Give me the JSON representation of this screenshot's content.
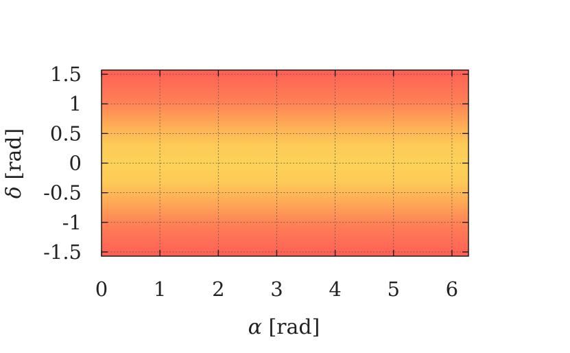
{
  "chart_data": {
    "type": "heatmap",
    "title": "",
    "x_ticks": [
      "0",
      "1",
      "2",
      "3",
      "4",
      "5",
      "6"
    ],
    "y_ticks": [
      "1.5",
      "1",
      "0.5",
      "0",
      "-0.5",
      "-1",
      "-1.5"
    ],
    "xlim": [
      0,
      6.283
    ],
    "ylim": [
      -1.5708,
      1.5708
    ],
    "xlabel": {
      "symbol": "α",
      "unit": " [rad]"
    },
    "ylabel": {
      "symbol": "δ",
      "unit": " [rad]"
    },
    "grid": true,
    "colormap": {
      "center_color": "#fdd257",
      "edge_color": "#ff5f55"
    },
    "gradient_profile": [
      {
        "delta": -1.5708,
        "t": 1.0
      },
      {
        "delta": -1.05,
        "t": 0.72
      },
      {
        "delta": -0.6,
        "t": 0.3
      },
      {
        "delta": -0.3,
        "t": 0.06
      },
      {
        "delta": 0.0,
        "t": 0.0
      },
      {
        "delta": 0.3,
        "t": 0.06
      },
      {
        "delta": 0.6,
        "t": 0.3
      },
      {
        "delta": 1.05,
        "t": 0.72
      },
      {
        "delta": 1.5708,
        "t": 1.0
      }
    ]
  }
}
